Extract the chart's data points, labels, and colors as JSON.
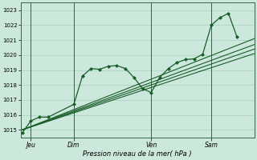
{
  "bg_color": "#cce8dd",
  "grid_color": "#99ccbb",
  "line_color": "#1a5c28",
  "marker_color": "#1a5c28",
  "xlabel": "Pression niveau de la mer( hPa )",
  "ylim": [
    1014.5,
    1023.5
  ],
  "yticks": [
    1015,
    1016,
    1017,
    1018,
    1019,
    1020,
    1021,
    1022,
    1023
  ],
  "xtick_labels": [
    "Jeu",
    "Dim",
    "Ven",
    "Sam"
  ],
  "xtick_positions": [
    0.5,
    3.0,
    7.5,
    11.0
  ],
  "xlim": [
    -0.1,
    13.5
  ],
  "series1_x": [
    0.0,
    0.5,
    1.0,
    1.5,
    3.0,
    3.5,
    4.0,
    4.5,
    5.0,
    5.5,
    6.0,
    6.5,
    7.0,
    7.5,
    8.0,
    8.5,
    9.0,
    9.5,
    10.0,
    10.5,
    11.0,
    11.5,
    12.0,
    12.5
  ],
  "series1_y": [
    1014.8,
    1015.6,
    1015.85,
    1015.85,
    1016.7,
    1018.6,
    1019.1,
    1019.05,
    1019.25,
    1019.3,
    1019.1,
    1018.5,
    1017.75,
    1017.5,
    1018.5,
    1019.1,
    1019.5,
    1019.7,
    1019.75,
    1020.05,
    1022.0,
    1022.5,
    1022.8,
    1021.2
  ],
  "series2_x": [
    0.0,
    13.5
  ],
  "series2_y": [
    1015.0,
    1021.1
  ],
  "series3_x": [
    0.0,
    13.5
  ],
  "series3_y": [
    1015.0,
    1020.7
  ],
  "series4_x": [
    0.0,
    13.5
  ],
  "series4_y": [
    1015.0,
    1020.4
  ],
  "series5_x": [
    0.0,
    13.5
  ],
  "series5_y": [
    1015.0,
    1020.1
  ]
}
